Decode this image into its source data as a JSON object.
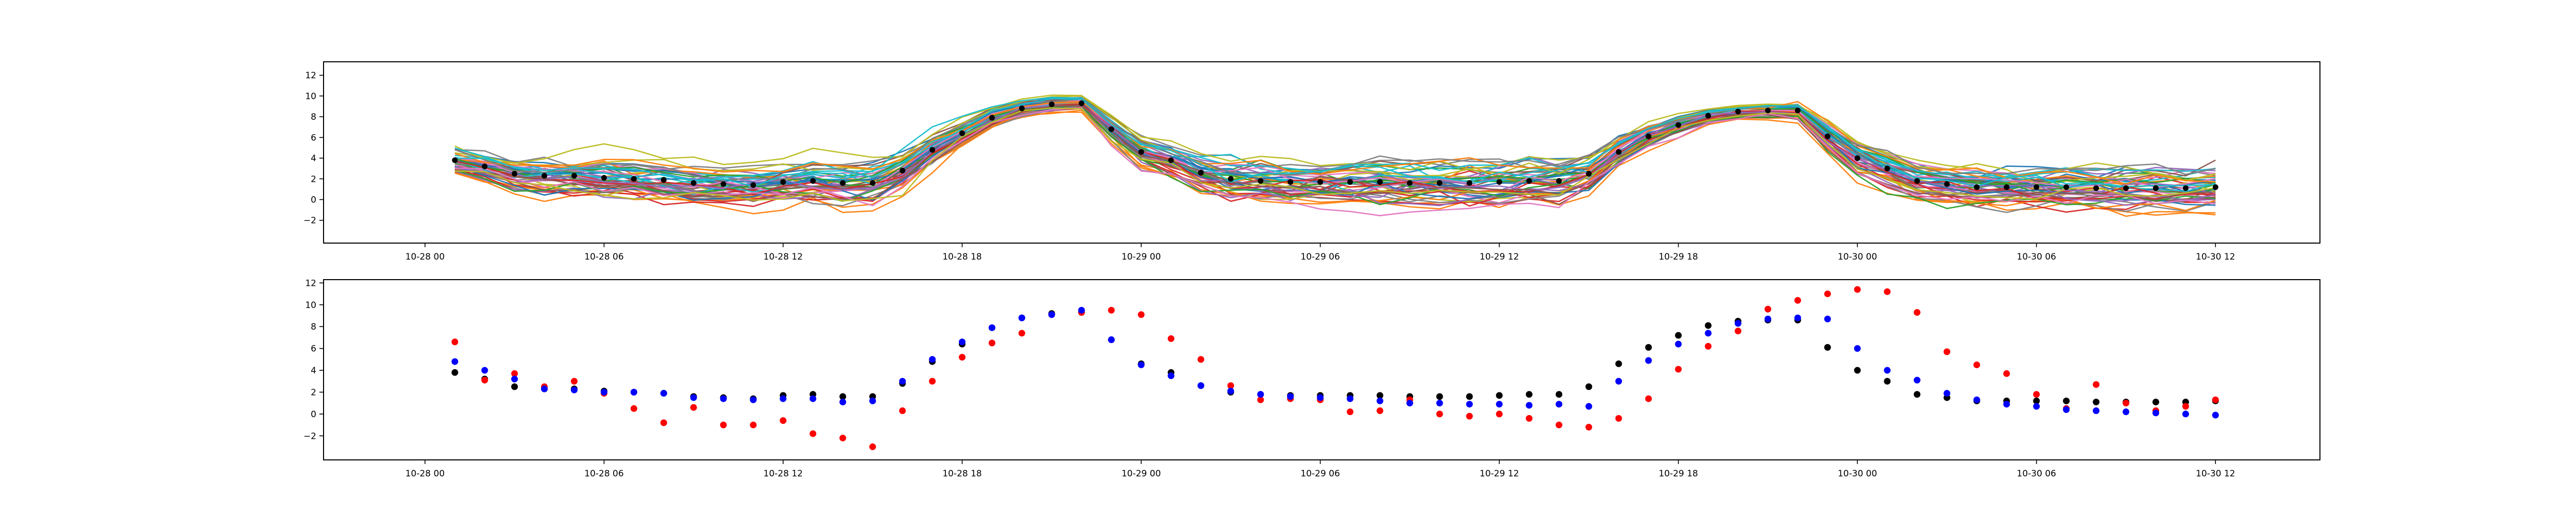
{
  "colors": {
    "mean_marker": "#000000",
    "obs_marker": "#ff0000",
    "fc_marker": "#0000ff",
    "ensemble_palette": [
      "#1f77b4",
      "#ff7f0e",
      "#2ca02c",
      "#d62728",
      "#9467bd",
      "#8c564b",
      "#e377c2",
      "#7f7f7f",
      "#bcbd22",
      "#17becf"
    ]
  },
  "chart_data": [
    {
      "type": "line",
      "title": "",
      "xlabel": "",
      "ylabel": "",
      "x_unit": "hours from 10-28 00:00",
      "xlim": [
        -3.4,
        63.5
      ],
      "ylim": [
        -4.2,
        13.3
      ],
      "yticks": [
        -2,
        0,
        2,
        4,
        6,
        8,
        10,
        12
      ],
      "ytick_labels": [
        "−2",
        "0",
        "2",
        "4",
        "6",
        "8",
        "10",
        "12"
      ],
      "xticks": [
        0,
        6,
        12,
        18,
        24,
        30,
        36,
        42,
        48,
        54,
        60
      ],
      "xtick_labels": [
        "10-28 00",
        "10-28 06",
        "10-28 12",
        "10-28 18",
        "10-29 00",
        "10-29 06",
        "10-29 12",
        "10-29 18",
        "10-30 00",
        "10-30 06",
        "10-30 12"
      ],
      "grid": false,
      "legend": "none",
      "x": [
        1,
        2,
        3,
        4,
        5,
        6,
        7,
        8,
        9,
        10,
        11,
        12,
        13,
        14,
        15,
        16,
        17,
        18,
        19,
        20,
        21,
        22,
        23,
        24,
        25,
        26,
        27,
        28,
        29,
        30,
        31,
        32,
        33,
        34,
        35,
        36,
        37,
        38,
        39,
        40,
        41,
        42,
        43,
        44,
        45,
        46,
        47,
        48,
        49,
        50,
        51,
        52,
        53,
        54,
        55,
        56,
        57,
        58,
        59,
        60
      ],
      "ensemble_mean": [
        3.8,
        3.2,
        2.5,
        2.3,
        2.3,
        2.1,
        2.0,
        1.9,
        1.6,
        1.5,
        1.4,
        1.7,
        1.8,
        1.6,
        1.6,
        2.8,
        4.8,
        6.4,
        7.9,
        8.8,
        9.2,
        9.3,
        6.8,
        4.6,
        3.8,
        2.6,
        2.0,
        1.8,
        1.7,
        1.7,
        1.7,
        1.7,
        1.6,
        1.6,
        1.6,
        1.7,
        1.8,
        1.8,
        2.5,
        4.6,
        6.1,
        7.2,
        8.1,
        8.5,
        8.6,
        8.6,
        6.1,
        4.0,
        3.0,
        1.8,
        1.5,
        1.2,
        1.2,
        1.2,
        1.2,
        1.1,
        1.1,
        1.1,
        1.1,
        1.2
      ],
      "ensemble_spread": [
        1.6,
        1.7,
        1.8,
        1.9,
        2.0,
        2.1,
        2.1,
        2.2,
        2.2,
        2.3,
        2.3,
        2.3,
        2.4,
        2.4,
        2.4,
        2.2,
        1.8,
        1.4,
        1.1,
        0.9,
        0.8,
        0.8,
        1.5,
        1.8,
        2.0,
        2.1,
        2.2,
        2.2,
        2.3,
        2.3,
        2.3,
        2.4,
        2.4,
        2.4,
        2.5,
        2.5,
        2.5,
        2.3,
        2.0,
        1.6,
        1.3,
        1.1,
        0.9,
        0.8,
        0.8,
        0.9,
        1.6,
        1.9,
        2.0,
        2.1,
        2.1,
        2.2,
        2.2,
        2.2,
        2.2,
        2.3,
        2.3,
        2.3,
        2.3,
        2.4
      ],
      "series_count": 50
    },
    {
      "type": "scatter",
      "title": "",
      "xlabel": "",
      "ylabel": "",
      "x_unit": "hours from 10-28 00:00",
      "xlim": [
        -3.4,
        63.5
      ],
      "ylim": [
        -4.2,
        12.3
      ],
      "yticks": [
        -2,
        0,
        2,
        4,
        6,
        8,
        10,
        12
      ],
      "ytick_labels": [
        "−2",
        "0",
        "2",
        "4",
        "6",
        "8",
        "10",
        "12"
      ],
      "xticks": [
        0,
        6,
        12,
        18,
        24,
        30,
        36,
        42,
        48,
        54,
        60
      ],
      "xtick_labels": [
        "10-28 00",
        "10-28 06",
        "10-28 12",
        "10-28 18",
        "10-29 00",
        "10-29 06",
        "10-29 12",
        "10-29 18",
        "10-30 00",
        "10-30 06",
        "10-30 12"
      ],
      "grid": false,
      "legend": "none",
      "x": [
        1,
        2,
        3,
        4,
        5,
        6,
        7,
        8,
        9,
        10,
        11,
        12,
        13,
        14,
        15,
        16,
        17,
        18,
        19,
        20,
        21,
        22,
        23,
        24,
        25,
        26,
        27,
        28,
        29,
        30,
        31,
        32,
        33,
        34,
        35,
        36,
        37,
        38,
        39,
        40,
        41,
        42,
        43,
        44,
        45,
        46,
        47,
        48,
        49,
        50,
        51,
        52,
        53,
        54,
        55,
        56,
        57,
        58,
        59,
        60
      ],
      "series": [
        {
          "color": "#000000",
          "values": [
            3.8,
            3.2,
            2.5,
            2.3,
            2.3,
            2.1,
            2.0,
            1.9,
            1.6,
            1.5,
            1.4,
            1.7,
            1.8,
            1.6,
            1.6,
            2.8,
            4.8,
            6.4,
            7.9,
            8.8,
            9.2,
            9.3,
            6.8,
            4.6,
            3.8,
            2.6,
            2.0,
            1.8,
            1.7,
            1.7,
            1.7,
            1.7,
            1.6,
            1.6,
            1.6,
            1.7,
            1.8,
            1.8,
            2.5,
            4.6,
            6.1,
            7.2,
            8.1,
            8.5,
            8.6,
            8.6,
            6.1,
            4.0,
            3.0,
            1.8,
            1.5,
            1.2,
            1.2,
            1.2,
            1.2,
            1.1,
            1.1,
            1.1,
            1.1,
            1.2
          ]
        },
        {
          "color": "#ff0000",
          "values": [
            6.6,
            3.1,
            3.7,
            2.5,
            3.0,
            1.9,
            0.5,
            -0.8,
            0.6,
            -1.0,
            -1.0,
            -0.6,
            -1.8,
            -2.2,
            -3.0,
            0.3,
            3.0,
            5.2,
            6.5,
            7.4,
            9.1,
            9.3,
            9.5,
            9.1,
            6.9,
            5.0,
            2.6,
            1.3,
            1.4,
            1.3,
            0.2,
            0.3,
            1.3,
            0.0,
            -0.2,
            0.0,
            -0.4,
            -1.0,
            -1.2,
            -0.4,
            1.4,
            4.1,
            6.2,
            7.6,
            9.6,
            10.4,
            11.0,
            11.4,
            11.2,
            9.3,
            5.7,
            4.5,
            3.7,
            1.8,
            0.5,
            2.7,
            1.0,
            0.3,
            0.7,
            1.3
          ]
        },
        {
          "color": "#0000ff",
          "values": [
            4.8,
            4.0,
            3.2,
            2.3,
            2.2,
            2.0,
            2.0,
            1.9,
            1.5,
            1.4,
            1.3,
            1.4,
            1.4,
            1.1,
            1.2,
            3.0,
            5.0,
            6.6,
            7.9,
            8.8,
            9.1,
            9.5,
            6.8,
            4.5,
            3.5,
            2.6,
            2.1,
            1.8,
            1.6,
            1.5,
            1.4,
            1.2,
            1.0,
            1.0,
            0.9,
            0.9,
            0.8,
            0.9,
            0.7,
            3.0,
            4.9,
            6.4,
            7.4,
            8.3,
            8.7,
            8.8,
            8.7,
            6.0,
            4.0,
            3.1,
            1.9,
            1.3,
            0.9,
            0.7,
            0.4,
            0.3,
            0.2,
            0.1,
            0.0,
            -0.1
          ]
        }
      ]
    }
  ]
}
